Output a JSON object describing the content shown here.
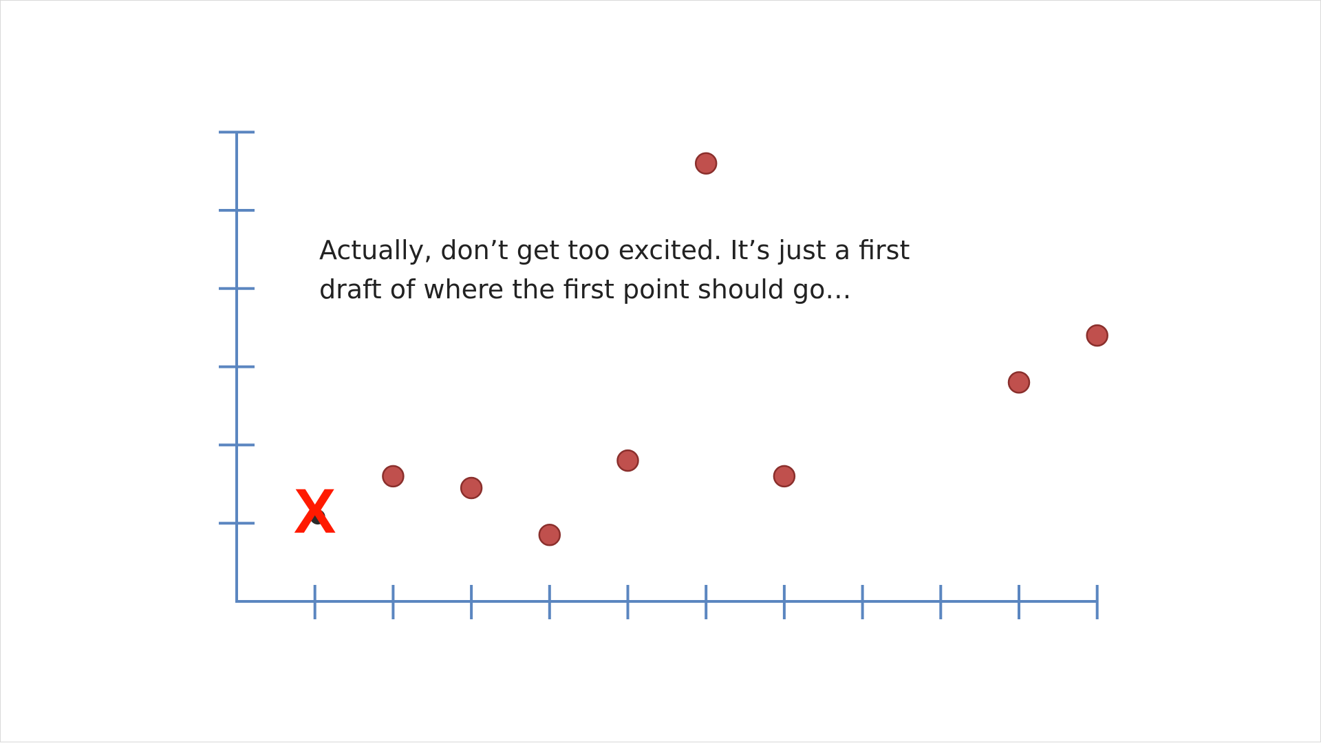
{
  "chart_data": {
    "type": "scatter",
    "title": "",
    "xlabel": "",
    "ylabel": "",
    "xlim": [
      0,
      11
    ],
    "ylim": [
      0,
      6
    ],
    "x_ticks": [
      1,
      2,
      3,
      4,
      5,
      6,
      7,
      8,
      9,
      10,
      11
    ],
    "y_ticks": [
      1,
      2,
      3,
      4,
      5,
      6
    ],
    "grid": false,
    "points": [
      {
        "x": 2,
        "y": 1.6
      },
      {
        "x": 3,
        "y": 1.45
      },
      {
        "x": 4,
        "y": 0.85
      },
      {
        "x": 5,
        "y": 1.8
      },
      {
        "x": 6,
        "y": 5.6
      },
      {
        "x": 7,
        "y": 1.6
      },
      {
        "x": 10,
        "y": 2.8
      },
      {
        "x": 11,
        "y": 3.4
      }
    ],
    "marker": {
      "x": 1,
      "y": 1.15,
      "label": "X",
      "color": "#ff1a00"
    },
    "point_color": "#c0504d",
    "axis_color": "#5b86c0",
    "annotation": [
      "Actually, don’t get too excited. It’s just a first",
      "draft of where the first point should go…"
    ]
  }
}
